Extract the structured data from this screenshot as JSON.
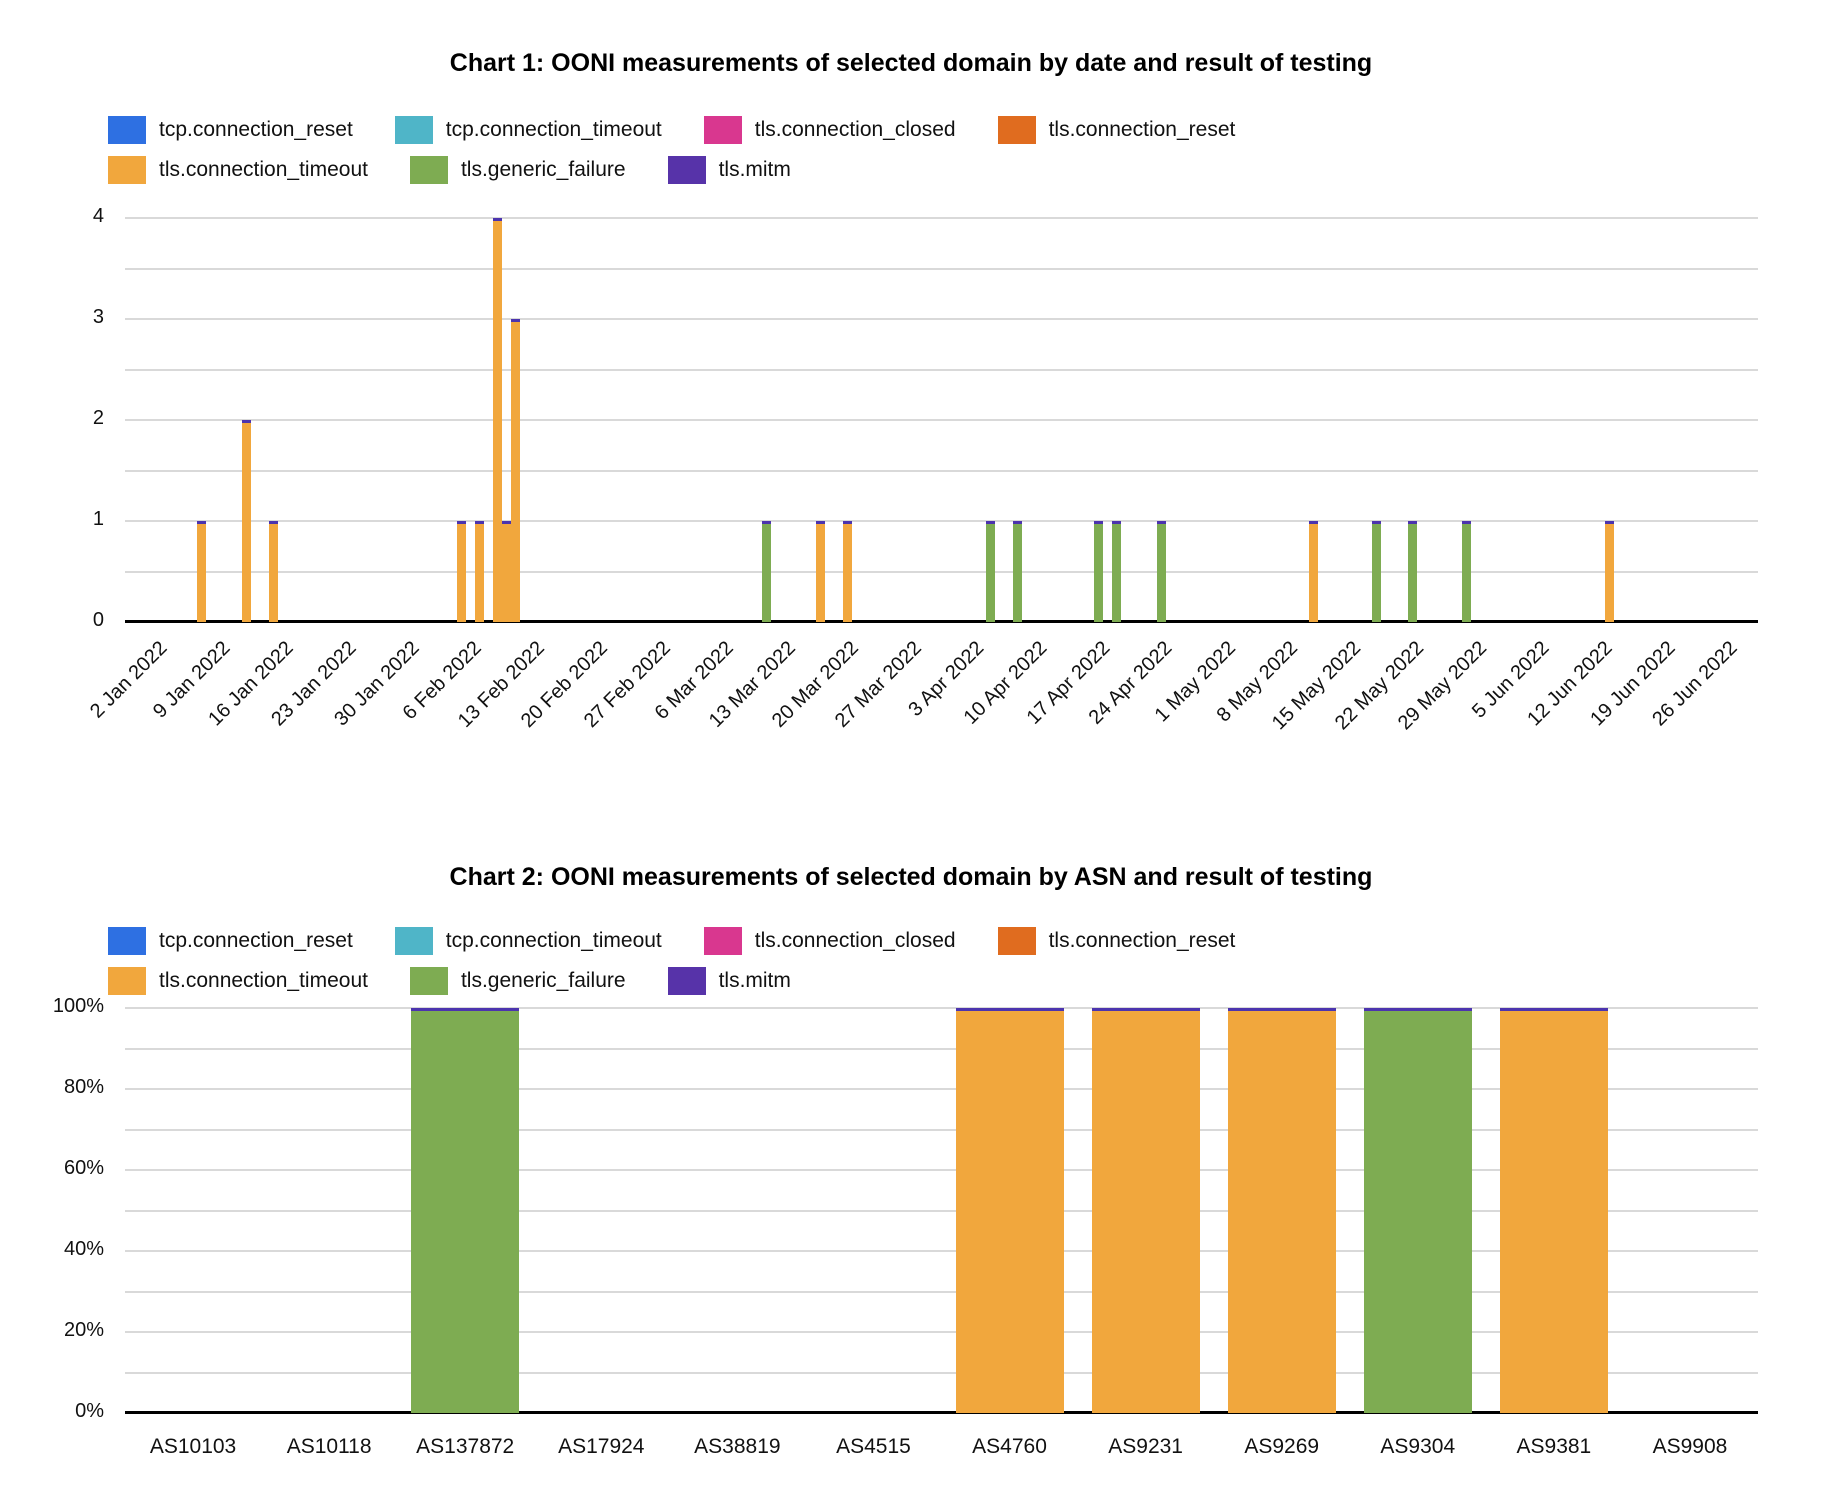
{
  "series": [
    {
      "key": "tcp.connection_reset",
      "label": "tcp.connection_reset",
      "color": "#2E70E2"
    },
    {
      "key": "tcp.connection_timeout",
      "label": "tcp.connection_timeout",
      "color": "#4FB5C8"
    },
    {
      "key": "tls.connection_closed",
      "label": "tls.connection_closed",
      "color": "#D9378F"
    },
    {
      "key": "tls.connection_reset",
      "label": "tls.connection_reset",
      "color": "#E06C1F"
    },
    {
      "key": "tls.connection_timeout",
      "label": "tls.connection_timeout",
      "color": "#F1A73D"
    },
    {
      "key": "tls.generic_failure",
      "label": "tls.generic_failure",
      "color": "#7EAC52"
    },
    {
      "key": "tls.mitm",
      "label": "tls.mitm",
      "color": "#5733A9"
    }
  ],
  "bar_cap_color": "#4C34AE",
  "gridline_color": "#d9d9d9",
  "chart_data": [
    {
      "type": "bar",
      "title": "Chart 1: OONI measurements of selected domain by date and result of testing",
      "stacked": true,
      "legend_position": "top",
      "grid": true,
      "ylim": [
        0,
        4
      ],
      "y_tick_labels": [
        "4",
        "3",
        "2",
        "1",
        "0"
      ],
      "y_minor_step": 0.5,
      "x_start_date": "2 Jan 2022",
      "x_days_total": 182,
      "x_tick_labels": [
        "2 Jan 2022",
        "9 Jan 2022",
        "16 Jan 2022",
        "23 Jan 2022",
        "30 Jan 2022",
        "6 Feb 2022",
        "13 Feb 2022",
        "20 Feb 2022",
        "27 Feb 2022",
        "6 Mar 2022",
        "13 Mar 2022",
        "20 Mar 2022",
        "27 Mar 2022",
        "3 Apr 2022",
        "10 Apr 2022",
        "17 Apr 2022",
        "24 Apr 2022",
        "1 May 2022",
        "8 May 2022",
        "15 May 2022",
        "22 May 2022",
        "29 May 2022",
        "5 Jun 2022",
        "12 Jun 2022",
        "19 Jun 2022",
        "26 Jun 2022"
      ],
      "bars": [
        {
          "date": "10 Jan 2022",
          "day_index": 8,
          "series": "tls.connection_timeout",
          "value": 1
        },
        {
          "date": "15 Jan 2022",
          "day_index": 13,
          "series": "tls.connection_timeout",
          "value": 2
        },
        {
          "date": "18 Jan 2022",
          "day_index": 16,
          "series": "tls.connection_timeout",
          "value": 1
        },
        {
          "date": "8 Feb 2022",
          "day_index": 37,
          "series": "tls.connection_timeout",
          "value": 1
        },
        {
          "date": "10 Feb 2022",
          "day_index": 39,
          "series": "tls.connection_timeout",
          "value": 1
        },
        {
          "date": "12 Feb 2022",
          "day_index": 41,
          "series": "tls.connection_timeout",
          "value": 4
        },
        {
          "date": "13 Feb 2022",
          "day_index": 42,
          "series": "tls.connection_timeout",
          "value": 1
        },
        {
          "date": "14 Feb 2022",
          "day_index": 43,
          "series": "tls.connection_timeout",
          "value": 3
        },
        {
          "date": "14 Mar 2022",
          "day_index": 71,
          "series": "tls.generic_failure",
          "value": 1
        },
        {
          "date": "20 Mar 2022",
          "day_index": 77,
          "series": "tls.connection_timeout",
          "value": 1
        },
        {
          "date": "23 Mar 2022",
          "day_index": 80,
          "series": "tls.connection_timeout",
          "value": 1
        },
        {
          "date": "8 Apr 2022",
          "day_index": 96,
          "series": "tls.generic_failure",
          "value": 1
        },
        {
          "date": "11 Apr 2022",
          "day_index": 99,
          "series": "tls.generic_failure",
          "value": 1
        },
        {
          "date": "20 Apr 2022",
          "day_index": 108,
          "series": "tls.generic_failure",
          "value": 1
        },
        {
          "date": "22 Apr 2022",
          "day_index": 110,
          "series": "tls.generic_failure",
          "value": 1
        },
        {
          "date": "27 Apr 2022",
          "day_index": 115,
          "series": "tls.generic_failure",
          "value": 1
        },
        {
          "date": "14 May 2022",
          "day_index": 132,
          "series": "tls.connection_timeout",
          "value": 1
        },
        {
          "date": "21 May 2022",
          "day_index": 139,
          "series": "tls.generic_failure",
          "value": 1
        },
        {
          "date": "25 May 2022",
          "day_index": 143,
          "series": "tls.generic_failure",
          "value": 1
        },
        {
          "date": "31 May 2022",
          "day_index": 149,
          "series": "tls.generic_failure",
          "value": 1
        },
        {
          "date": "16 Jun 2022",
          "day_index": 165,
          "series": "tls.connection_timeout",
          "value": 1
        }
      ]
    },
    {
      "type": "bar",
      "title": "Chart 2: OONI measurements of selected domain by ASN and result of testing",
      "stacked": true,
      "percent": true,
      "legend_position": "top",
      "grid": true,
      "ylim": [
        0,
        100
      ],
      "y_tick_labels": [
        "100%",
        "80%",
        "60%",
        "40%",
        "20%",
        "0%"
      ],
      "y_minor_step": 10,
      "categories": [
        "AS10103",
        "AS10118",
        "AS137872",
        "AS17924",
        "AS38819",
        "AS4515",
        "AS4760",
        "AS9231",
        "AS9269",
        "AS9304",
        "AS9381",
        "AS9908"
      ],
      "bars": [
        {
          "category": "AS137872",
          "series": "tls.generic_failure",
          "value": 100
        },
        {
          "category": "AS4760",
          "series": "tls.connection_timeout",
          "value": 100
        },
        {
          "category": "AS9231",
          "series": "tls.connection_timeout",
          "value": 100
        },
        {
          "category": "AS9269",
          "series": "tls.connection_timeout",
          "value": 100
        },
        {
          "category": "AS9304",
          "series": "tls.generic_failure",
          "value": 100
        },
        {
          "category": "AS9381",
          "series": "tls.connection_timeout",
          "value": 100
        }
      ]
    }
  ]
}
